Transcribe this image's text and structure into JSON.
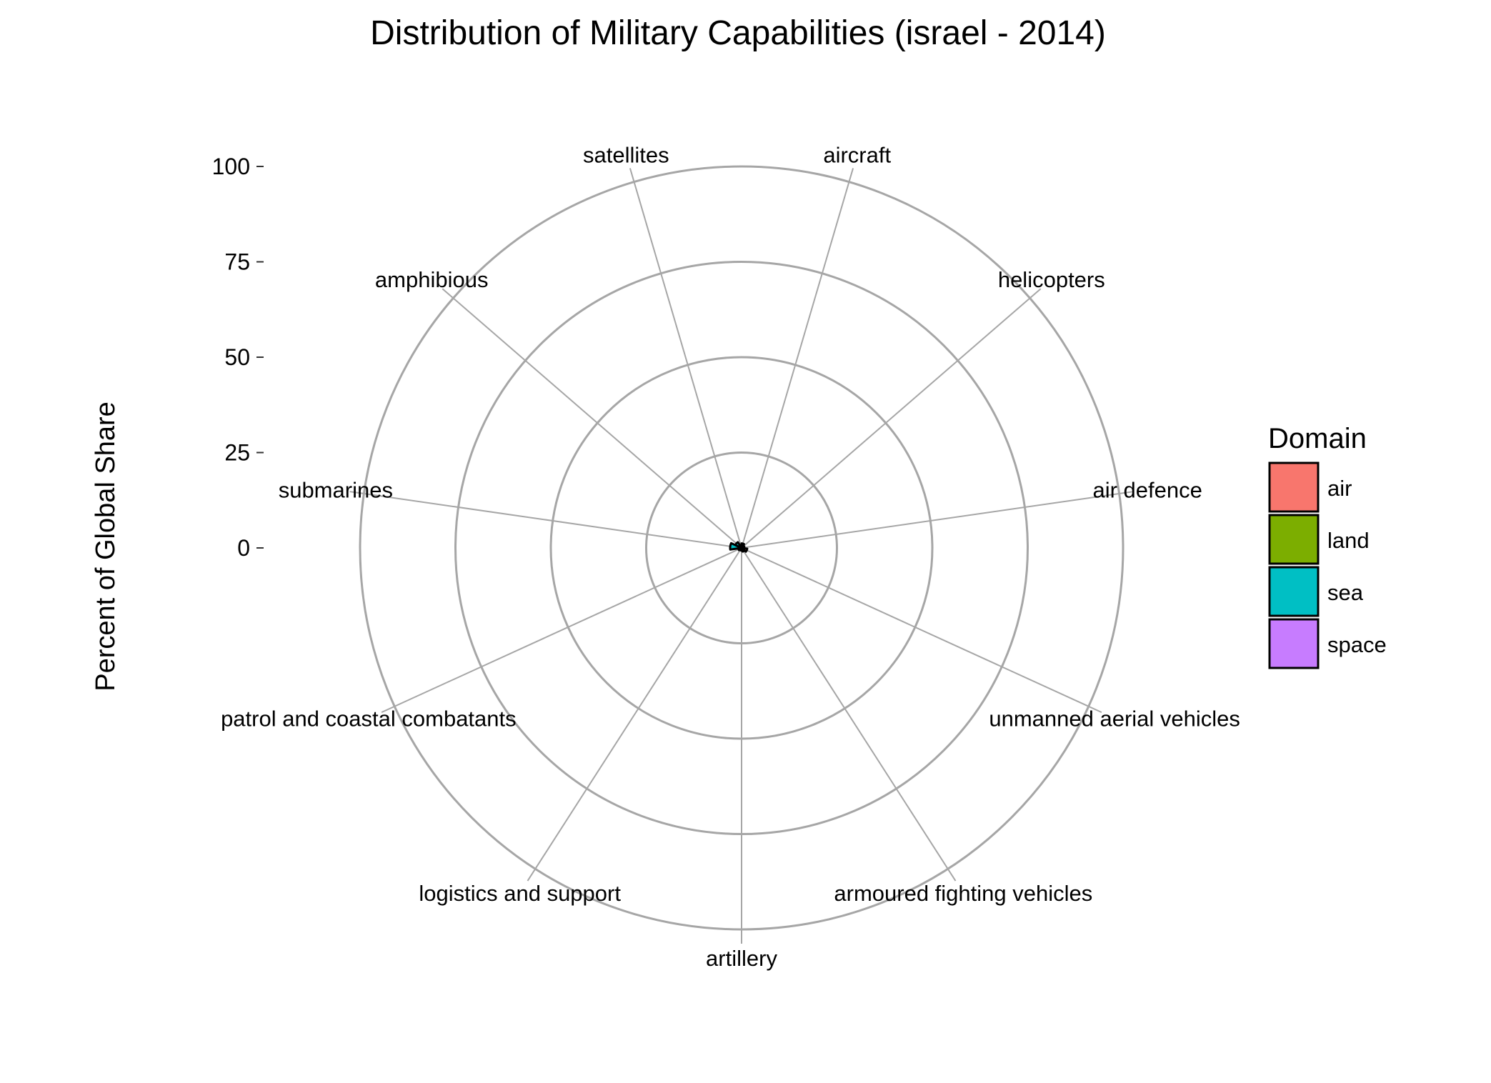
{
  "chart_data": {
    "type": "radial-bar",
    "title": "Distribution of Military Capabilities (israel - 2014)",
    "ylabel": "Percent of Global Share",
    "xlabel": "",
    "ylim": [
      0,
      100
    ],
    "yticks": [
      0,
      25,
      50,
      75,
      100
    ],
    "grid": true,
    "legend_position": "right",
    "legend": {
      "title": "Domain",
      "items": [
        {
          "label": "air",
          "color": "#F8766D"
        },
        {
          "label": "land",
          "color": "#7CAE00"
        },
        {
          "label": "sea",
          "color": "#00BFC4"
        },
        {
          "label": "space",
          "color": "#C77CFF"
        }
      ]
    },
    "categories": [
      "aircraft",
      "helicopters",
      "air defence",
      "unmanned aerial vehicles",
      "armoured fighting vehicles",
      "artillery",
      "logistics and support",
      "patrol and coastal combatants",
      "submarines",
      "amphibious",
      "satellites"
    ],
    "domains": [
      "air",
      "air",
      "air",
      "air",
      "land",
      "land",
      "land",
      "sea",
      "sea",
      "sea",
      "space"
    ],
    "values": [
      1.2,
      0.8,
      0.6,
      1.5,
      1.0,
      0.7,
      0.6,
      0.9,
      3.0,
      1.8,
      0.5
    ]
  }
}
